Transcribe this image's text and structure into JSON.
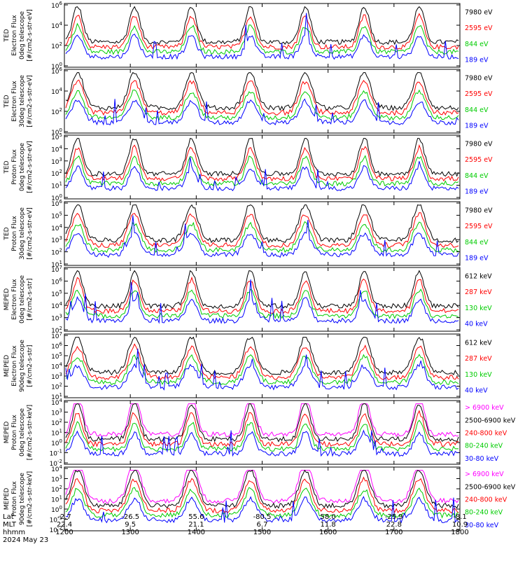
{
  "chart_data": {
    "type": "line",
    "panels": [
      {
        "ylabel_lines": [
          "TED",
          "Electron Flux",
          "0deg telescope",
          "[#/cm2-s-str-eV]"
        ],
        "ytick_labels": [
          "10^6",
          "10^4",
          "10^2",
          "10^0"
        ],
        "ytick_mantissa": [
          "10",
          "10",
          "10",
          "10"
        ],
        "ytick_exponent": [
          "6",
          "4",
          "2",
          "0"
        ],
        "legend": [
          {
            "label": "7980 eV",
            "color": "#000000"
          },
          {
            "label": "2595 eV",
            "color": "#ff0000"
          },
          {
            "label": "844 eV",
            "color": "#00cc00"
          },
          {
            "label": "189 eV",
            "color": "#0000ff"
          }
        ]
      },
      {
        "ylabel_lines": [
          "TED",
          "Electron Flux",
          "30deg telescope",
          "[#/cm2-s-str-eV]"
        ],
        "ytick_labels": [
          "10^6",
          "10^4",
          "10^2",
          "10^0"
        ],
        "ytick_mantissa": [
          "10",
          "10",
          "10",
          "10"
        ],
        "ytick_exponent": [
          "6",
          "4",
          "2",
          "0"
        ],
        "legend": [
          {
            "label": "7980 eV",
            "color": "#000000"
          },
          {
            "label": "2595 eV",
            "color": "#ff0000"
          },
          {
            "label": "844 eV",
            "color": "#00cc00"
          },
          {
            "label": "189 eV",
            "color": "#0000ff"
          }
        ]
      },
      {
        "ylabel_lines": [
          "TED",
          "Proton Flux",
          "0deg telescope",
          "[#/cm2-s-str-eV]"
        ],
        "ytick_labels": [
          "10^5",
          "10^4",
          "10^3",
          "10^2",
          "10^1",
          "10^0"
        ],
        "ytick_mantissa": [
          "10",
          "10",
          "10",
          "10",
          "10",
          "10"
        ],
        "ytick_exponent": [
          "5",
          "4",
          "3",
          "2",
          "1",
          "0"
        ],
        "legend": [
          {
            "label": "7980 eV",
            "color": "#000000"
          },
          {
            "label": "2595 eV",
            "color": "#ff0000"
          },
          {
            "label": "844 eV",
            "color": "#00cc00"
          },
          {
            "label": "189 eV",
            "color": "#0000ff"
          }
        ]
      },
      {
        "ylabel_lines": [
          "TED",
          "Proton Flux",
          "30deg telescope",
          "[#/cm2-s-str-eV]"
        ],
        "ytick_labels": [
          "10^6",
          "10^5",
          "10^4",
          "10^3",
          "10^2",
          "10^1"
        ],
        "ytick_mantissa": [
          "10",
          "10",
          "10",
          "10",
          "10",
          "10"
        ],
        "ytick_exponent": [
          "6",
          "5",
          "4",
          "3",
          "2",
          "1"
        ],
        "legend": [
          {
            "label": "7980 eV",
            "color": "#000000"
          },
          {
            "label": "2595 eV",
            "color": "#ff0000"
          },
          {
            "label": "844 eV",
            "color": "#00cc00"
          },
          {
            "label": "189 eV",
            "color": "#0000ff"
          }
        ]
      },
      {
        "ylabel_lines": [
          "MEPED",
          "Electron Flux",
          "0deg telescope",
          "[#/cm2-s-str]"
        ],
        "ytick_labels": [
          "10^7",
          "10^6",
          "10^5",
          "10^4",
          "10^3",
          "10^2"
        ],
        "ytick_mantissa": [
          "10",
          "10",
          "10",
          "10",
          "10",
          "10"
        ],
        "ytick_exponent": [
          "7",
          "6",
          "5",
          "4",
          "3",
          "2"
        ],
        "legend": [
          {
            "label": "612 keV",
            "color": "#000000"
          },
          {
            "label": "287 keV",
            "color": "#ff0000"
          },
          {
            "label": "130 keV",
            "color": "#00cc00"
          },
          {
            "label": "40 keV",
            "color": "#0000ff"
          }
        ]
      },
      {
        "ylabel_lines": [
          "MEPED",
          "Electron Flux",
          "90deg telescope",
          "[#/cm2-s-str]"
        ],
        "ytick_labels": [
          "10^7",
          "10^6",
          "10^5",
          "10^4",
          "10^3",
          "10^2",
          "10^1"
        ],
        "ytick_mantissa": [
          "10",
          "10",
          "10",
          "10",
          "10",
          "10",
          "10"
        ],
        "ytick_exponent": [
          "7",
          "6",
          "5",
          "4",
          "3",
          "2",
          "1"
        ],
        "legend": [
          {
            "label": "612 keV",
            "color": "#000000"
          },
          {
            "label": "287 keV",
            "color": "#ff0000"
          },
          {
            "label": "130 keV",
            "color": "#00cc00"
          },
          {
            "label": "40 keV",
            "color": "#0000ff"
          }
        ]
      },
      {
        "ylabel_lines": [
          "MEPED",
          "Proton Flux",
          "0deg telescope",
          "[#/cm2-s-str-keV]"
        ],
        "ytick_labels": [
          "10^4",
          "10^3",
          "10^2",
          "10^1",
          "10^0",
          "10^-1",
          "10^-2"
        ],
        "ytick_mantissa": [
          "10",
          "10",
          "10",
          "10",
          "10",
          "10",
          "10"
        ],
        "ytick_exponent": [
          "4",
          "3",
          "2",
          "1",
          "0",
          "-1",
          "-2"
        ],
        "legend": [
          {
            "label": "> 6900 keV",
            "color": "#ff00ff"
          },
          {
            "label": "2500-6900 keV",
            "color": "#000000"
          },
          {
            "label": "240-800 keV",
            "color": "#ff0000"
          },
          {
            "label": "80-240 keV",
            "color": "#00cc00"
          },
          {
            "label": "30-80 keV",
            "color": "#0000ff"
          }
        ]
      },
      {
        "ylabel_lines": [
          "MEPED",
          "Proton Flux",
          "90deg telescope",
          "[#/cm2-s-str-keV]"
        ],
        "ytick_labels": [
          "10^4",
          "10^3",
          "10^2",
          "10^1",
          "10^0",
          "10^-1",
          "10^-2"
        ],
        "ytick_mantissa": [
          "10",
          "10",
          "10",
          "10",
          "10",
          "10",
          "10"
        ],
        "ytick_exponent": [
          "4",
          "3",
          "2",
          "1",
          "0",
          "-1",
          "-2"
        ],
        "legend": [
          {
            "label": "> 6900 keV",
            "color": "#ff00ff"
          },
          {
            "label": "2500-6900 keV",
            "color": "#000000"
          },
          {
            "label": "240-800 keV",
            "color": "#ff0000"
          },
          {
            "label": "80-240 keV",
            "color": "#00cc00"
          },
          {
            "label": "30-80 keV",
            "color": "#0000ff"
          }
        ]
      }
    ],
    "x_axis": {
      "row_labels": [
        "Lat",
        "MLT",
        "hhmm",
        "2024 May 23"
      ],
      "ticks": [
        {
          "lat": "-2.7",
          "mlt": "22.4",
          "hhmm": "1200"
        },
        {
          "lat": "-26.5",
          "mlt": "9.5",
          "hhmm": "1300"
        },
        {
          "lat": "55.6",
          "mlt": "21.1",
          "hhmm": "1400"
        },
        {
          "lat": "-80.5",
          "mlt": "6.7",
          "hhmm": "1500"
        },
        {
          "lat": "58.0",
          "mlt": "11.8",
          "hhmm": "1600"
        },
        {
          "lat": "-25.9",
          "mlt": "22.8",
          "hhmm": "1700"
        },
        {
          "lat": "-8.1",
          "mlt": "10.9",
          "hhmm": "1800"
        }
      ]
    }
  }
}
